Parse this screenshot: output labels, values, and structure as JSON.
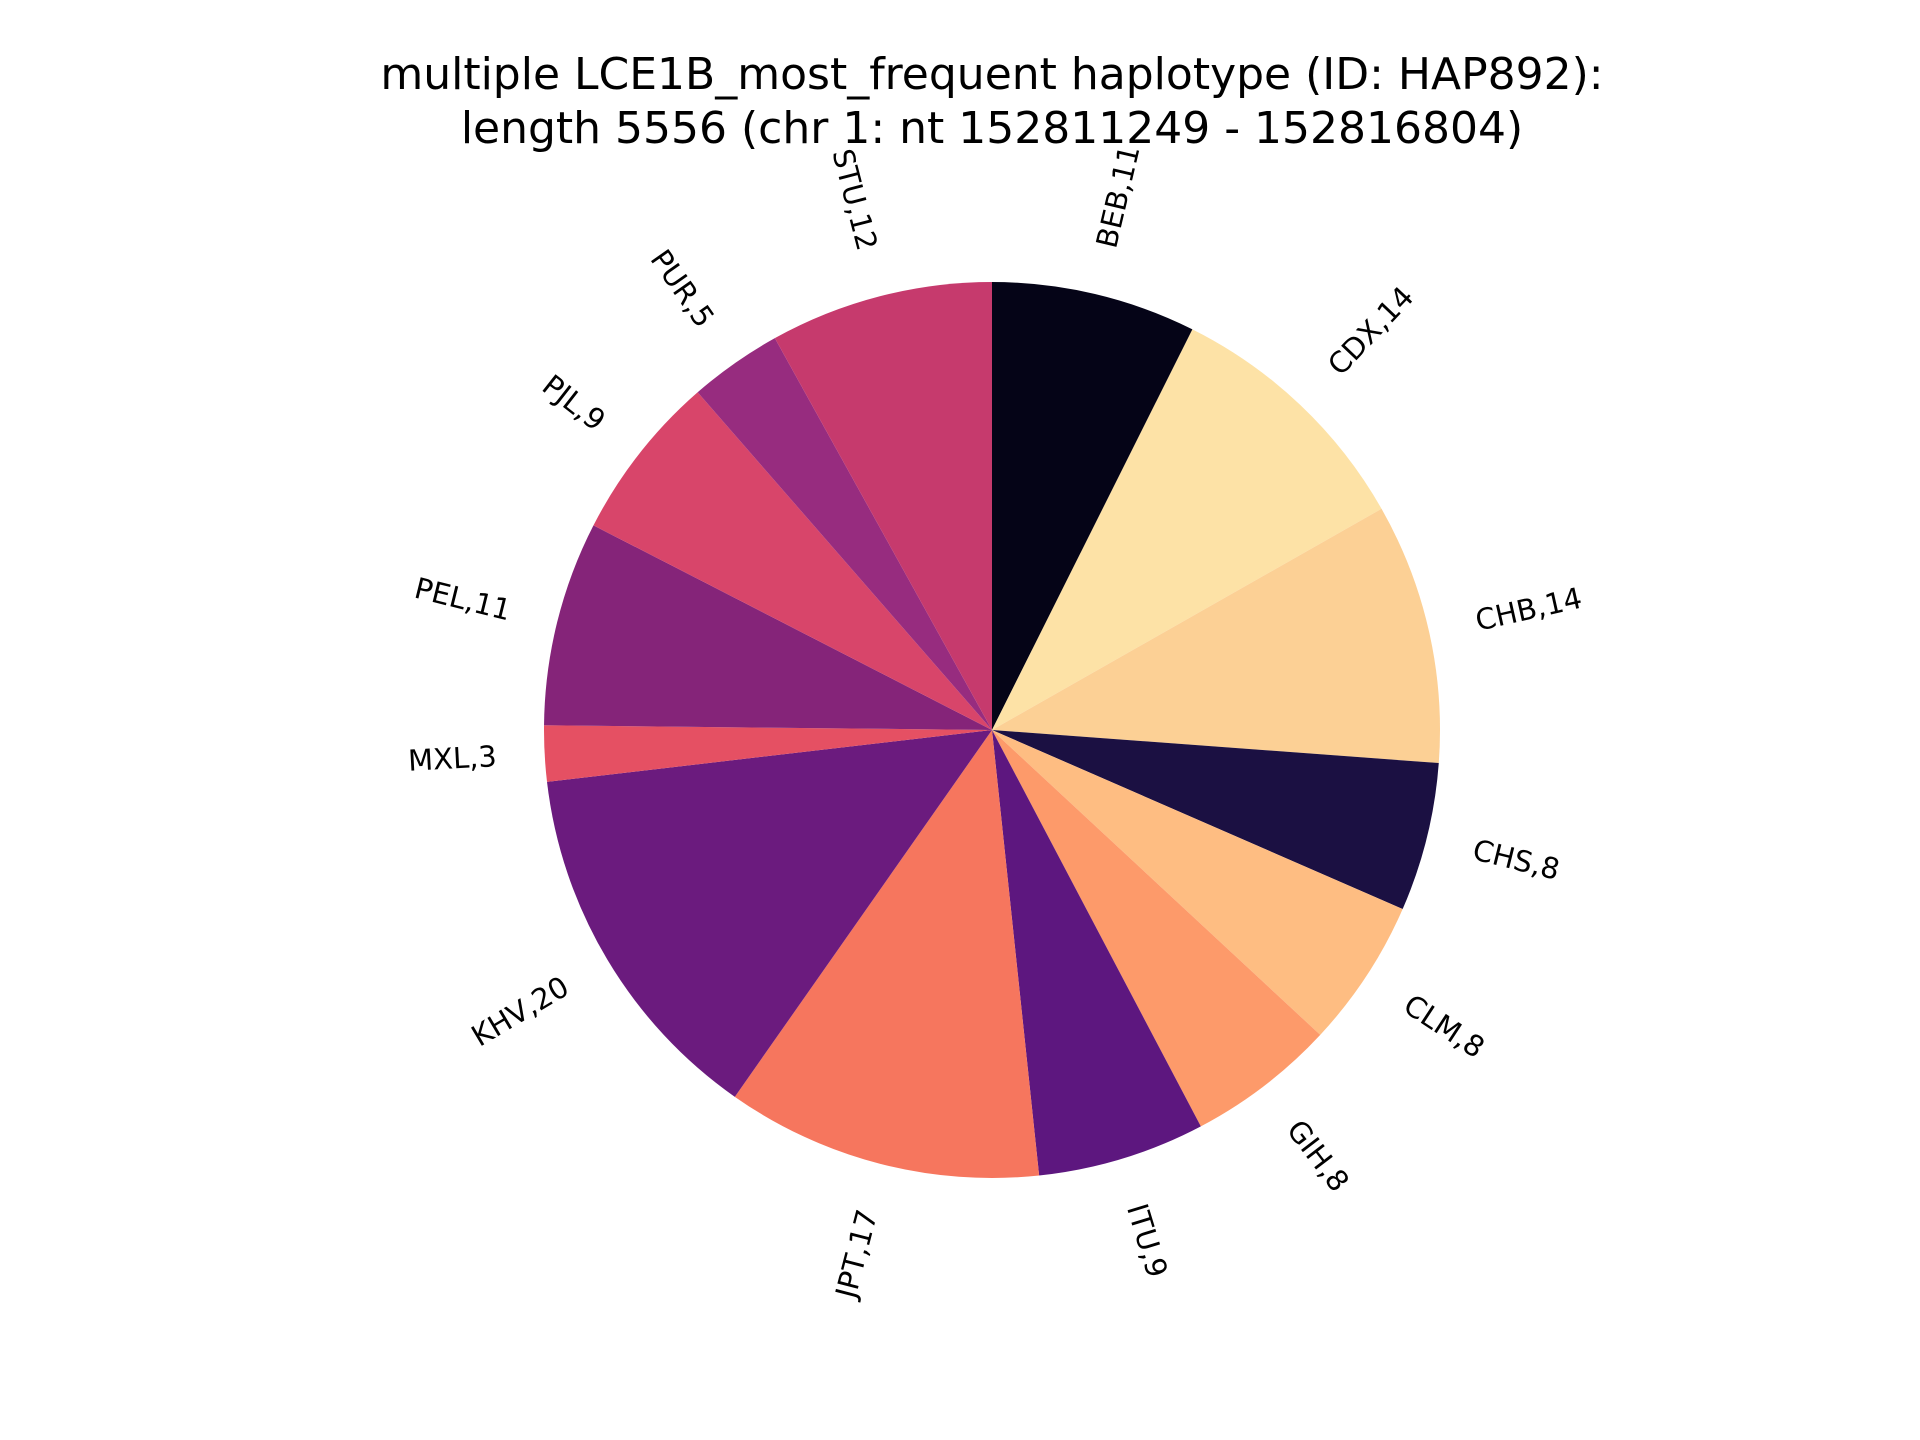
{
  "chart_data": {
    "type": "pie",
    "title": "multiple LCE1B_most_frequent haplotype (ID: HAP892):\nlength 5556 (chr 1: nt 152811249 - 152816804)",
    "title_lines": [
      "multiple LCE1B_most_frequent haplotype (ID: HAP892):",
      "length 5556 (chr 1: nt 152811249 - 152816804)"
    ],
    "start": "top",
    "direction": "clockwise",
    "colormap": "magma",
    "slices": [
      {
        "category": "BEB",
        "value": 11,
        "label": "BEB,11",
        "color": "#050417"
      },
      {
        "category": "CDX",
        "value": 14,
        "label": "CDX,14",
        "color": "#fde2a6"
      },
      {
        "category": "CHB",
        "value": 14,
        "label": "CHB,14",
        "color": "#fcd095"
      },
      {
        "category": "CHS",
        "value": 8,
        "label": "CHS,8",
        "color": "#1b1042"
      },
      {
        "category": "CLM",
        "value": 8,
        "label": "CLM,8",
        "color": "#febd82"
      },
      {
        "category": "GIH",
        "value": 8,
        "label": "GIH,8",
        "color": "#fd9a6a"
      },
      {
        "category": "ITU",
        "value": 9,
        "label": "ITU,9",
        "color": "#5d177f"
      },
      {
        "category": "JPT",
        "value": 17,
        "label": "JPT,17",
        "color": "#f6765e"
      },
      {
        "category": "KHV",
        "value": 20,
        "label": "KHV,20",
        "color": "#6b1b7e"
      },
      {
        "category": "MXL",
        "value": 3,
        "label": "MXL,3",
        "color": "#e55063"
      },
      {
        "category": "PEL",
        "value": 11,
        "label": "PEL,11",
        "color": "#852479"
      },
      {
        "category": "PJL",
        "value": 9,
        "label": "PJL,9",
        "color": "#d8456a"
      },
      {
        "category": "PUR",
        "value": 5,
        "label": "PUR,5",
        "color": "#972c7f"
      },
      {
        "category": "STU",
        "value": 12,
        "label": "STU,12",
        "color": "#c63a6d"
      }
    ]
  }
}
